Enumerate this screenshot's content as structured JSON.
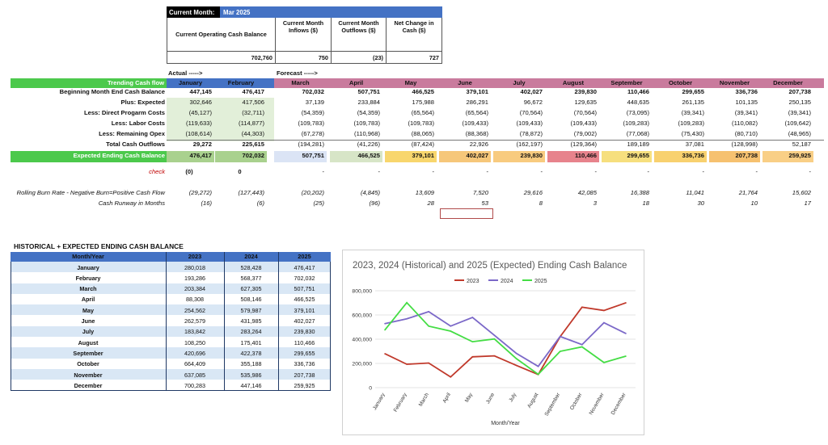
{
  "summary": {
    "month_label": "Current Month:",
    "month_value": "Mar 2025",
    "headers": [
      "Current Operating Cash Balance",
      "Current Month Inflows ($)",
      "Current Month Outflows ($)",
      "Net Change in Cash ($)"
    ],
    "values": [
      "702,760",
      "750",
      "(23)",
      "727"
    ]
  },
  "main": {
    "actual_label": "Actual ----->",
    "forecast_label": "Forecast ----->",
    "header_label": "Trending Cash flow",
    "months": [
      "January",
      "February",
      "March",
      "April",
      "May",
      "June",
      "July",
      "August",
      "September",
      "October",
      "November",
      "December"
    ],
    "rows": [
      {
        "label": "Beginning Month End Cash Balance",
        "values": [
          "447,145",
          "476,417",
          "702,032",
          "507,751",
          "466,525",
          "379,101",
          "402,027",
          "239,830",
          "110,466",
          "299,655",
          "336,736",
          "207,738"
        ]
      },
      {
        "label": "Plus: Expected",
        "values": [
          "302,646",
          "417,506",
          "37,139",
          "233,884",
          "175,988",
          "286,291",
          "96,672",
          "129,635",
          "448,635",
          "261,135",
          "101,135",
          "250,135"
        ]
      },
      {
        "label": "Less: Direct Progarm Costs",
        "values": [
          "(45,127)",
          "(32,711)",
          "(54,359)",
          "(54,359)",
          "(65,564)",
          "(65,564)",
          "(70,564)",
          "(70,564)",
          "(73,095)",
          "(39,341)",
          "(39,341)",
          "(39,341)"
        ]
      },
      {
        "label": "Less: Labor Costs",
        "values": [
          "(119,633)",
          "(114,877)",
          "(109,783)",
          "(109,783)",
          "(109,783)",
          "(109,433)",
          "(109,433)",
          "(109,433)",
          "(109,283)",
          "(109,283)",
          "(110,082)",
          "(109,642)"
        ]
      },
      {
        "label": "Less: Remaining Opex",
        "values": [
          "(108,614)",
          "(44,303)",
          "(67,278)",
          "(110,968)",
          "(88,065)",
          "(88,368)",
          "(78,872)",
          "(79,002)",
          "(77,068)",
          "(75,430)",
          "(80,710)",
          "(48,965)"
        ]
      },
      {
        "label": "Total Cash Outflows",
        "values": [
          "29,272",
          "225,615",
          "(194,281)",
          "(41,226)",
          "(87,424)",
          "22,926",
          "(162,197)",
          "(129,364)",
          "189,189",
          "37,081",
          "(128,998)",
          "52,187"
        ]
      },
      {
        "label": "Expected Ending Cash Balance",
        "values": [
          "476,417",
          "702,032",
          "507,751",
          "466,525",
          "379,101",
          "402,027",
          "239,830",
          "110,466",
          "299,655",
          "336,736",
          "207,738",
          "259,925"
        ]
      }
    ],
    "check_label": "check",
    "check_values": [
      "(0)",
      "0",
      "-",
      "-",
      "-",
      "-",
      "-",
      "-",
      "-",
      "-",
      "-",
      "-"
    ],
    "burn_label": "Rolling Burn Rate - Negative Burn=Positive Cash Flow",
    "burn_values": [
      "(29,272)",
      "(127,443)",
      "(20,202)",
      "(4,845)",
      "13,609",
      "7,520",
      "29,616",
      "42,085",
      "16,388",
      "11,041",
      "21,764",
      "15,602"
    ],
    "runway_label": "Cash Runway in Months",
    "runway_values": [
      "(16)",
      "(6)",
      "(25)",
      "(96)",
      "28",
      "53",
      "8",
      "3",
      "18",
      "30",
      "10",
      "17"
    ]
  },
  "hist": {
    "title": "HISTORICAL + EXPECTED ENDING CASH BALANCE",
    "headers": [
      "Month/Year",
      "2023",
      "2024",
      "2025"
    ],
    "rows": [
      [
        "January",
        "280,018",
        "528,428",
        "476,417"
      ],
      [
        "February",
        "193,286",
        "568,377",
        "702,032"
      ],
      [
        "March",
        "203,384",
        "627,305",
        "507,751"
      ],
      [
        "April",
        "88,308",
        "508,146",
        "466,525"
      ],
      [
        "May",
        "254,562",
        "579,987",
        "379,101"
      ],
      [
        "June",
        "262,579",
        "431,985",
        "402,027"
      ],
      [
        "July",
        "183,842",
        "283,264",
        "239,830"
      ],
      [
        "August",
        "108,250",
        "175,401",
        "110,466"
      ],
      [
        "September",
        "420,696",
        "422,378",
        "299,655"
      ],
      [
        "October",
        "664,409",
        "355,188",
        "336,736"
      ],
      [
        "November",
        "637,085",
        "535,986",
        "207,738"
      ],
      [
        "December",
        "700,283",
        "447,146",
        "259,925"
      ]
    ]
  },
  "colors": {
    "blue_header": "#4472c4",
    "green_band": "#4cc94c",
    "pink_band": "#c97b9d",
    "light_green": "#e2efd9",
    "navy": "#1f3864",
    "s2023": "#c0392b",
    "s2024": "#7b68c8",
    "s2025": "#44dd44"
  },
  "chart_data": {
    "type": "line",
    "title": "2023, 2024 (Historical) and 2025 (Expected) Ending Cash Balance",
    "xlabel": "Month/Year",
    "ylabel": "",
    "ylim": [
      0,
      800000
    ],
    "yticks": [
      "0",
      "200,000",
      "400,000",
      "600,000",
      "800,000"
    ],
    "categories": [
      "January",
      "February",
      "March",
      "April",
      "May",
      "June",
      "July",
      "August",
      "September",
      "October",
      "November",
      "December"
    ],
    "series": [
      {
        "name": "2023",
        "color": "#c0392b",
        "values": [
          280018,
          193286,
          203384,
          88308,
          254562,
          262579,
          183842,
          108250,
          420696,
          664409,
          637085,
          700283
        ]
      },
      {
        "name": "2024",
        "color": "#7b68c8",
        "values": [
          528428,
          568377,
          627305,
          508146,
          579987,
          431985,
          283264,
          175401,
          422378,
          355188,
          535986,
          447146
        ]
      },
      {
        "name": "2025",
        "color": "#44dd44",
        "values": [
          476417,
          702032,
          507751,
          466525,
          379101,
          402027,
          239830,
          110466,
          299655,
          336736,
          207738,
          259925
        ]
      }
    ]
  }
}
